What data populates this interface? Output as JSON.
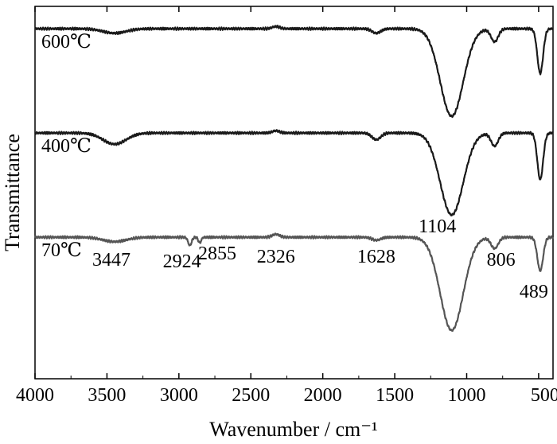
{
  "chart_data": {
    "type": "line",
    "title": "",
    "xlabel": "Wavenumber / cm⁻¹",
    "ylabel": "Transmittance",
    "xlim": [
      4000,
      400
    ],
    "x_reversed": true,
    "x_ticks": [
      4000,
      3500,
      3000,
      2500,
      2000,
      1500,
      1000,
      500
    ],
    "y_ticks": [],
    "grid": false,
    "legend": "none",
    "series": [
      {
        "name": "600℃",
        "color": "#1a1a1a",
        "baseline": 0.94,
        "bands": [
          {
            "center": 3447,
            "depth": 0.012,
            "width": 80
          },
          {
            "center": 2326,
            "depth": -0.006,
            "width": 25
          },
          {
            "center": 1628,
            "depth": 0.012,
            "width": 30
          },
          {
            "center": 1104,
            "depth": 0.235,
            "width": 80
          },
          {
            "center": 806,
            "depth": 0.035,
            "width": 25
          },
          {
            "center": 489,
            "depth": 0.12,
            "width": 20
          }
        ]
      },
      {
        "name": "400℃",
        "color": "#1a1a1a",
        "baseline": 0.66,
        "bands": [
          {
            "center": 3447,
            "depth": 0.03,
            "width": 80
          },
          {
            "center": 2326,
            "depth": -0.006,
            "width": 25
          },
          {
            "center": 1628,
            "depth": 0.018,
            "width": 30
          },
          {
            "center": 1104,
            "depth": 0.22,
            "width": 80
          },
          {
            "center": 806,
            "depth": 0.035,
            "width": 25
          },
          {
            "center": 489,
            "depth": 0.125,
            "width": 20
          }
        ]
      },
      {
        "name": "70℃",
        "color": "#555555",
        "baseline": 0.38,
        "bands": [
          {
            "center": 3447,
            "depth": 0.012,
            "width": 80
          },
          {
            "center": 2924,
            "depth": 0.022,
            "width": 12
          },
          {
            "center": 2855,
            "depth": 0.015,
            "width": 10
          },
          {
            "center": 2326,
            "depth": -0.008,
            "width": 25
          },
          {
            "center": 1628,
            "depth": 0.008,
            "width": 30
          },
          {
            "center": 1104,
            "depth": 0.25,
            "width": 80
          },
          {
            "center": 806,
            "depth": 0.03,
            "width": 25
          },
          {
            "center": 489,
            "depth": 0.09,
            "width": 20
          }
        ]
      }
    ],
    "annotations": [
      {
        "text": "3447",
        "x": 3447
      },
      {
        "text": "2924",
        "x": 2924
      },
      {
        "text": "2855",
        "x": 2855
      },
      {
        "text": "2326",
        "x": 2326
      },
      {
        "text": "1628",
        "x": 1628
      },
      {
        "text": "1104",
        "x": 1104
      },
      {
        "text": "806",
        "x": 806
      },
      {
        "text": "489",
        "x": 489
      }
    ]
  }
}
